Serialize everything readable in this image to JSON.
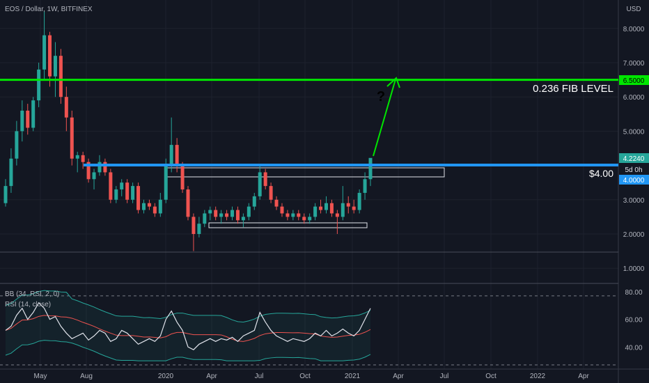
{
  "header": {
    "symbol_title": "EOS / Dollar, 1W, BITFINEX",
    "currency": "USD"
  },
  "chart_data": {
    "type": "candlestick",
    "title": "EOS / Dollar, 1W, BITFINEX",
    "y_axis_unit": "USD",
    "y_ticks": [
      "8.0000",
      "7.0000",
      "6.0000",
      "5.0000",
      "3.0000",
      "2.0000",
      "1.0000"
    ],
    "x_ticks": [
      "May",
      "Aug",
      "2020",
      "Apr",
      "Jul",
      "Oct",
      "2021",
      "Apr",
      "Jul",
      "Oct",
      "2022",
      "Apr"
    ],
    "price_labels": {
      "fib": "6.5000",
      "last": "4.2240",
      "countdown": "5d 0h",
      "support": "4.0000"
    },
    "candles": [
      {
        "o": 2.9,
        "h": 3.6,
        "l": 2.8,
        "c": 3.4
      },
      {
        "o": 3.4,
        "h": 4.5,
        "l": 3.2,
        "c": 4.2
      },
      {
        "o": 4.2,
        "h": 5.3,
        "l": 4.0,
        "c": 5.0
      },
      {
        "o": 5.0,
        "h": 5.9,
        "l": 4.7,
        "c": 5.6
      },
      {
        "o": 5.6,
        "h": 5.8,
        "l": 4.9,
        "c": 5.1
      },
      {
        "o": 5.1,
        "h": 6.0,
        "l": 5.0,
        "c": 5.9
      },
      {
        "o": 5.9,
        "h": 7.0,
        "l": 5.7,
        "c": 6.8
      },
      {
        "o": 6.8,
        "h": 8.5,
        "l": 6.5,
        "c": 7.8
      },
      {
        "o": 7.8,
        "h": 7.9,
        "l": 6.3,
        "c": 6.6
      },
      {
        "o": 6.6,
        "h": 7.6,
        "l": 6.0,
        "c": 7.2
      },
      {
        "o": 7.2,
        "h": 7.4,
        "l": 5.8,
        "c": 6.0
      },
      {
        "o": 6.0,
        "h": 6.3,
        "l": 5.0,
        "c": 5.4
      },
      {
        "o": 5.4,
        "h": 5.6,
        "l": 4.0,
        "c": 4.2
      },
      {
        "o": 4.2,
        "h": 4.4,
        "l": 3.8,
        "c": 4.3
      },
      {
        "o": 4.3,
        "h": 4.4,
        "l": 3.9,
        "c": 4.1
      },
      {
        "o": 4.1,
        "h": 4.2,
        "l": 3.5,
        "c": 3.6
      },
      {
        "o": 3.6,
        "h": 3.9,
        "l": 3.3,
        "c": 3.8
      },
      {
        "o": 3.8,
        "h": 4.3,
        "l": 3.7,
        "c": 4.1
      },
      {
        "o": 4.1,
        "h": 4.2,
        "l": 3.7,
        "c": 3.8
      },
      {
        "o": 3.8,
        "h": 3.9,
        "l": 2.9,
        "c": 3.0
      },
      {
        "o": 3.0,
        "h": 3.4,
        "l": 2.9,
        "c": 3.3
      },
      {
        "o": 3.3,
        "h": 3.6,
        "l": 3.1,
        "c": 3.5
      },
      {
        "o": 3.5,
        "h": 3.6,
        "l": 2.9,
        "c": 3.0
      },
      {
        "o": 3.0,
        "h": 3.5,
        "l": 2.9,
        "c": 3.4
      },
      {
        "o": 3.4,
        "h": 3.5,
        "l": 2.6,
        "c": 2.7
      },
      {
        "o": 2.7,
        "h": 3.0,
        "l": 2.6,
        "c": 2.9
      },
      {
        "o": 2.9,
        "h": 3.0,
        "l": 2.7,
        "c": 2.8
      },
      {
        "o": 2.8,
        "h": 2.9,
        "l": 2.5,
        "c": 2.6
      },
      {
        "o": 2.6,
        "h": 3.2,
        "l": 2.5,
        "c": 3.0
      },
      {
        "o": 3.0,
        "h": 4.2,
        "l": 2.9,
        "c": 4.0
      },
      {
        "o": 4.0,
        "h": 5.4,
        "l": 3.8,
        "c": 4.6
      },
      {
        "o": 4.6,
        "h": 4.8,
        "l": 3.8,
        "c": 4.0
      },
      {
        "o": 4.0,
        "h": 4.1,
        "l": 3.2,
        "c": 3.3
      },
      {
        "o": 3.3,
        "h": 3.4,
        "l": 2.4,
        "c": 2.5
      },
      {
        "o": 2.5,
        "h": 2.6,
        "l": 1.5,
        "c": 2.0
      },
      {
        "o": 2.0,
        "h": 2.5,
        "l": 1.9,
        "c": 2.3
      },
      {
        "o": 2.3,
        "h": 2.7,
        "l": 2.2,
        "c": 2.6
      },
      {
        "o": 2.6,
        "h": 2.8,
        "l": 2.4,
        "c": 2.7
      },
      {
        "o": 2.7,
        "h": 2.8,
        "l": 2.4,
        "c": 2.5
      },
      {
        "o": 2.5,
        "h": 2.7,
        "l": 2.3,
        "c": 2.6
      },
      {
        "o": 2.6,
        "h": 2.7,
        "l": 2.4,
        "c": 2.5
      },
      {
        "o": 2.5,
        "h": 2.8,
        "l": 2.4,
        "c": 2.7
      },
      {
        "o": 2.7,
        "h": 2.8,
        "l": 2.3,
        "c": 2.4
      },
      {
        "o": 2.4,
        "h": 2.6,
        "l": 2.2,
        "c": 2.5
      },
      {
        "o": 2.5,
        "h": 2.9,
        "l": 2.4,
        "c": 2.8
      },
      {
        "o": 2.8,
        "h": 3.2,
        "l": 2.7,
        "c": 3.1
      },
      {
        "o": 3.1,
        "h": 4.0,
        "l": 3.0,
        "c": 3.8
      },
      {
        "o": 3.8,
        "h": 3.9,
        "l": 3.3,
        "c": 3.4
      },
      {
        "o": 3.4,
        "h": 3.5,
        "l": 2.9,
        "c": 3.0
      },
      {
        "o": 3.0,
        "h": 3.1,
        "l": 2.7,
        "c": 2.8
      },
      {
        "o": 2.8,
        "h": 2.9,
        "l": 2.5,
        "c": 2.6
      },
      {
        "o": 2.6,
        "h": 2.7,
        "l": 2.4,
        "c": 2.5
      },
      {
        "o": 2.5,
        "h": 2.7,
        "l": 2.4,
        "c": 2.6
      },
      {
        "o": 2.6,
        "h": 2.7,
        "l": 2.4,
        "c": 2.5
      },
      {
        "o": 2.5,
        "h": 2.6,
        "l": 2.3,
        "c": 2.4
      },
      {
        "o": 2.4,
        "h": 2.6,
        "l": 2.3,
        "c": 2.5
      },
      {
        "o": 2.5,
        "h": 2.9,
        "l": 2.4,
        "c": 2.8
      },
      {
        "o": 2.8,
        "h": 3.0,
        "l": 2.6,
        "c": 2.7
      },
      {
        "o": 2.7,
        "h": 3.1,
        "l": 2.6,
        "c": 2.9
      },
      {
        "o": 2.9,
        "h": 3.0,
        "l": 2.5,
        "c": 2.6
      },
      {
        "o": 2.6,
        "h": 2.7,
        "l": 2.0,
        "c": 2.5
      },
      {
        "o": 2.5,
        "h": 3.4,
        "l": 2.4,
        "c": 2.9
      },
      {
        "o": 2.9,
        "h": 3.1,
        "l": 2.6,
        "c": 2.8
      },
      {
        "o": 2.8,
        "h": 3.0,
        "l": 2.6,
        "c": 2.7
      },
      {
        "o": 2.7,
        "h": 3.3,
        "l": 2.6,
        "c": 3.2
      },
      {
        "o": 3.2,
        "h": 3.8,
        "l": 3.0,
        "c": 3.6
      },
      {
        "o": 3.6,
        "h": 4.2,
        "l": 3.4,
        "c": 4.22
      }
    ],
    "rsi": [
      52,
      55,
      63,
      68,
      60,
      65,
      72,
      68,
      60,
      62,
      55,
      50,
      46,
      48,
      50,
      45,
      48,
      52,
      50,
      44,
      46,
      52,
      50,
      46,
      42,
      44,
      46,
      44,
      48,
      60,
      66,
      58,
      52,
      40,
      38,
      42,
      44,
      46,
      44,
      46,
      45,
      47,
      44,
      48,
      50,
      52,
      65,
      58,
      52,
      48,
      46,
      44,
      46,
      45,
      44,
      46,
      50,
      48,
      52,
      48,
      50,
      53,
      50,
      48,
      52,
      60,
      68
    ],
    "rsi_ticks": [
      "80.00",
      "60.00",
      "40.00"
    ],
    "indicators": [
      {
        "name": "BB (34, RSI, 2, 0)"
      },
      {
        "name": "RSI (14, close)"
      }
    ],
    "annotations": {
      "fib_label": "0.236 FIB LEVEL",
      "fib_price": 6.5,
      "support_label": "$4.00",
      "support_price": 4.0,
      "question": "?",
      "colors": {
        "fib": "#00e600",
        "support": "#2196f3",
        "bull": "#26a69a",
        "bear": "#ef5350",
        "arrow": "#00e600"
      }
    }
  }
}
